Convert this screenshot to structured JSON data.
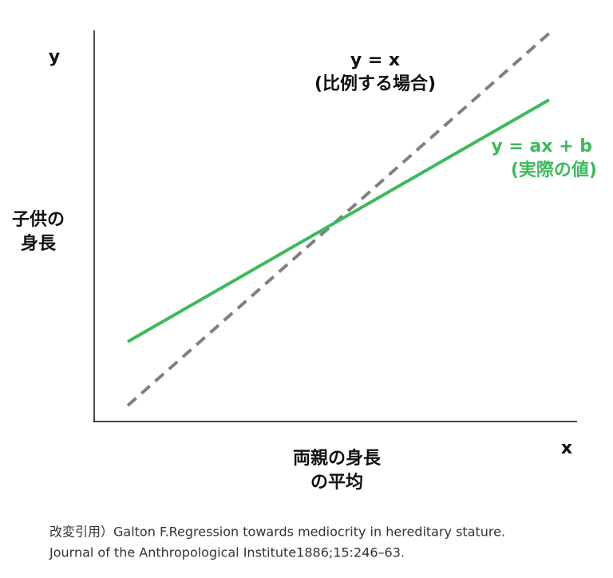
{
  "y_axis_label": "y",
  "x_axis_label": "x",
  "y_title": [
    "子供の",
    "身長"
  ],
  "x_title": [
    "両親の身長",
    "の平均"
  ],
  "proportional_line": [
    "y = x",
    "(比例する場合)"
  ],
  "actual_line": [
    "y = ax + b",
    "(実際の値)"
  ],
  "citation": [
    "改変引用）Galton F.Regression towards mediocrity in hereditary stature.",
    "Journal of the Anthropological Institute1886;15:246–63."
  ]
}
